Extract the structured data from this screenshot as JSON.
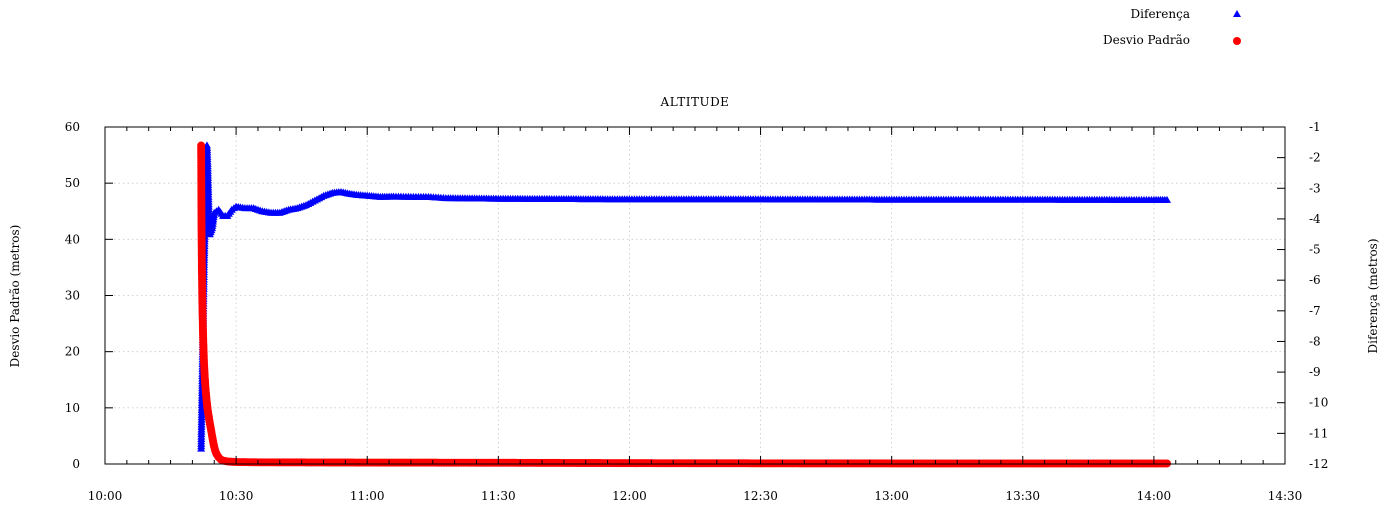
{
  "chart_data": {
    "type": "scatter",
    "title": "ALTITUDE",
    "xlabel": "",
    "ylabel_left": "Desvio Padrão (metros)",
    "ylabel_right": "Diferença (metros)",
    "x_ticks": [
      "10:00",
      "10:30",
      "11:00",
      "11:30",
      "12:00",
      "12:30",
      "13:00",
      "13:30",
      "14:00",
      "14:30"
    ],
    "x_range_minutes": [
      600,
      870
    ],
    "y_left": {
      "ylim": [
        0,
        60
      ],
      "ticks": [
        "0",
        "10",
        "20",
        "30",
        "40",
        "50",
        "60"
      ]
    },
    "y_right": {
      "ylim": [
        -12,
        -1
      ],
      "ticks": [
        "-1",
        "-2",
        "-3",
        "-4",
        "-5",
        "-6",
        "-7",
        "-8",
        "-9",
        "-10",
        "-11",
        "-12"
      ]
    },
    "grid": true,
    "legend_position": "top-right",
    "legend": [
      {
        "label": "Diferença",
        "marker": "triangle",
        "color": "#0000ff"
      },
      {
        "label": "Desvio Padrão",
        "marker": "circle",
        "color": "#ff0000"
      }
    ],
    "series": [
      {
        "name": "Diferença",
        "axis": "right",
        "color": "#0000ff",
        "marker": "triangle",
        "points": [
          [
            "10:22:00",
            -11.5
          ],
          [
            "10:22:10",
            -10.0
          ],
          [
            "10:22:20",
            -8.5
          ],
          [
            "10:22:30",
            -7.0
          ],
          [
            "10:22:40",
            -5.5
          ],
          [
            "10:22:50",
            -4.5
          ],
          [
            "10:23:00",
            -3.0
          ],
          [
            "10:23:10",
            -2.0
          ],
          [
            "10:23:20",
            -1.6
          ],
          [
            "10:23:30",
            -2.2
          ],
          [
            "10:23:40",
            -3.2
          ],
          [
            "10:23:50",
            -4.0
          ],
          [
            "10:24:00",
            -4.5
          ],
          [
            "10:24:30",
            -4.3
          ],
          [
            "10:25:00",
            -3.8
          ],
          [
            "10:26:00",
            -3.7
          ],
          [
            "10:27:00",
            -3.9
          ],
          [
            "10:28:00",
            -3.9
          ],
          [
            "10:29:00",
            -3.7
          ],
          [
            "10:30:00",
            -3.6
          ],
          [
            "10:32:00",
            -3.65
          ],
          [
            "10:34:00",
            -3.65
          ],
          [
            "10:36:00",
            -3.75
          ],
          [
            "10:38:00",
            -3.8
          ],
          [
            "10:40:00",
            -3.8
          ],
          [
            "10:42:00",
            -3.7
          ],
          [
            "10:44:00",
            -3.65
          ],
          [
            "10:46:00",
            -3.55
          ],
          [
            "10:48:00",
            -3.4
          ],
          [
            "10:50:00",
            -3.25
          ],
          [
            "10:52:00",
            -3.15
          ],
          [
            "10:54:00",
            -3.12
          ],
          [
            "10:56:00",
            -3.18
          ],
          [
            "10:58:00",
            -3.22
          ],
          [
            "11:00:00",
            -3.24
          ],
          [
            "11:03:00",
            -3.28
          ],
          [
            "11:06:00",
            -3.27
          ],
          [
            "11:10:00",
            -3.28
          ],
          [
            "11:14:00",
            -3.28
          ],
          [
            "11:18:00",
            -3.32
          ],
          [
            "11:24:00",
            -3.33
          ],
          [
            "11:30:00",
            -3.34
          ],
          [
            "11:45:00",
            -3.35
          ],
          [
            "12:00:00",
            -3.36
          ],
          [
            "12:30:00",
            -3.36
          ],
          [
            "13:00:00",
            -3.37
          ],
          [
            "13:30:00",
            -3.37
          ],
          [
            "14:00:00",
            -3.38
          ],
          [
            "14:03:00",
            -3.38
          ]
        ]
      },
      {
        "name": "Desvio Padrão",
        "axis": "left",
        "color": "#ff0000",
        "marker": "circle",
        "points": [
          [
            "10:22:00",
            56.7
          ],
          [
            "10:22:05",
            42.3
          ],
          [
            "10:22:10",
            35.0
          ],
          [
            "10:22:15",
            30.2
          ],
          [
            "10:22:20",
            26.6
          ],
          [
            "10:22:25",
            23.7
          ],
          [
            "10:22:30",
            21.3
          ],
          [
            "10:22:35",
            19.5
          ],
          [
            "10:22:40",
            17.8
          ],
          [
            "10:22:45",
            16.5
          ],
          [
            "10:22:50",
            15.3
          ],
          [
            "10:22:55",
            14.3
          ],
          [
            "10:23:00",
            13.5
          ],
          [
            "10:23:05",
            12.7
          ],
          [
            "10:23:10",
            12.0
          ],
          [
            "10:23:15",
            11.3
          ],
          [
            "10:23:20",
            10.7
          ],
          [
            "10:23:25",
            10.1
          ],
          [
            "10:23:30",
            9.6
          ],
          [
            "10:23:35",
            9.2
          ],
          [
            "10:23:40",
            8.8
          ],
          [
            "10:23:45",
            8.4
          ],
          [
            "10:23:50",
            8.0
          ],
          [
            "10:23:55",
            7.6
          ],
          [
            "10:24:00",
            7.2
          ],
          [
            "10:24:10",
            6.5
          ],
          [
            "10:24:20",
            5.8
          ],
          [
            "10:24:30",
            5.0
          ],
          [
            "10:24:40",
            4.3
          ],
          [
            "10:24:50",
            3.6
          ],
          [
            "10:25:00",
            3.0
          ],
          [
            "10:25:15",
            2.3
          ],
          [
            "10:25:30",
            1.8
          ],
          [
            "10:26:00",
            1.2
          ],
          [
            "10:26:30",
            0.8
          ],
          [
            "10:27:00",
            0.6
          ],
          [
            "10:28:00",
            0.45
          ],
          [
            "10:30:00",
            0.35
          ],
          [
            "10:35:00",
            0.3
          ],
          [
            "10:45:00",
            0.28
          ],
          [
            "11:00:00",
            0.25
          ],
          [
            "11:30:00",
            0.22
          ],
          [
            "11:40:00",
            0.2
          ],
          [
            "12:00:00",
            0.15
          ],
          [
            "12:30:00",
            0.12
          ],
          [
            "13:00:00",
            0.1
          ],
          [
            "13:30:00",
            0.1
          ],
          [
            "14:00:00",
            0.1
          ],
          [
            "14:03:00",
            0.1
          ]
        ]
      }
    ]
  }
}
